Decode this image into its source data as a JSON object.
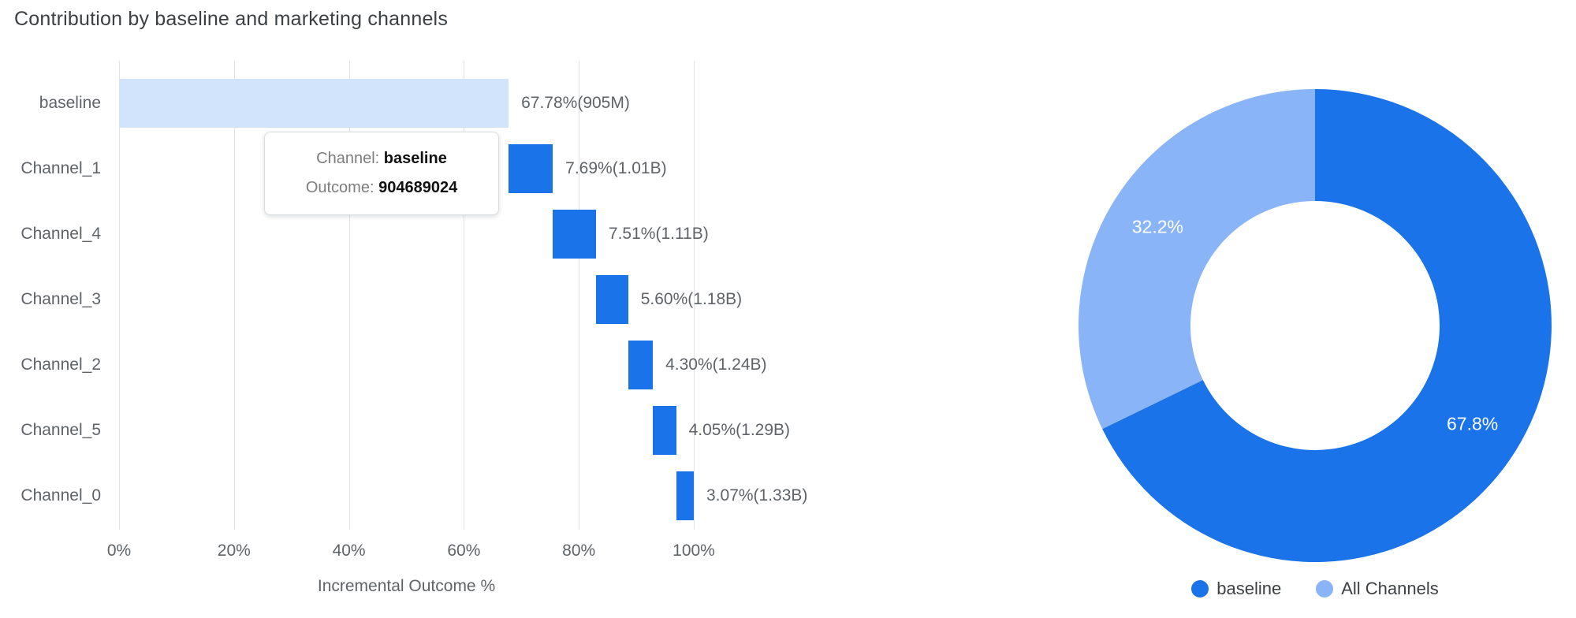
{
  "title": "Contribution by baseline and marketing channels",
  "tooltip": {
    "line1_label": "Channel:",
    "line1_value": "baseline",
    "line2_label": "Outcome:",
    "line2_value": "904689024"
  },
  "chart_data": [
    {
      "type": "bar",
      "subtype": "horizontal-waterfall",
      "title": "Contribution by baseline and marketing channels",
      "categories": [
        "baseline",
        "Channel_1",
        "Channel_4",
        "Channel_3",
        "Channel_2",
        "Channel_5",
        "Channel_0"
      ],
      "values_pct": [
        67.78,
        7.69,
        7.51,
        5.6,
        4.3,
        4.05,
        3.07
      ],
      "cumulative_start_pct": [
        0.0,
        67.78,
        75.47,
        82.98,
        88.58,
        92.88,
        96.93
      ],
      "bar_labels": [
        "67.78%(905M)",
        "7.69%(1.01B)",
        "7.51%(1.11B)",
        "5.60%(1.18B)",
        "4.30%(1.24B)",
        "4.05%(1.29B)",
        "3.07%(1.33B)"
      ],
      "xlabel": "Incremental Outcome %",
      "x_ticks": [
        "0%",
        "20%",
        "40%",
        "60%",
        "80%",
        "100%"
      ],
      "xlim": [
        0,
        100
      ],
      "grid": true,
      "baseline_color": "#d2e3fc",
      "channel_color": "#1a73e8"
    },
    {
      "type": "pie",
      "subtype": "donut",
      "labels": [
        "baseline",
        "All Channels"
      ],
      "values_pct": [
        67.8,
        32.2
      ],
      "slice_labels": [
        "67.8%",
        "32.2%"
      ],
      "colors": [
        "#1a73e8",
        "#8ab4f8"
      ],
      "legend_position": "bottom"
    }
  ]
}
